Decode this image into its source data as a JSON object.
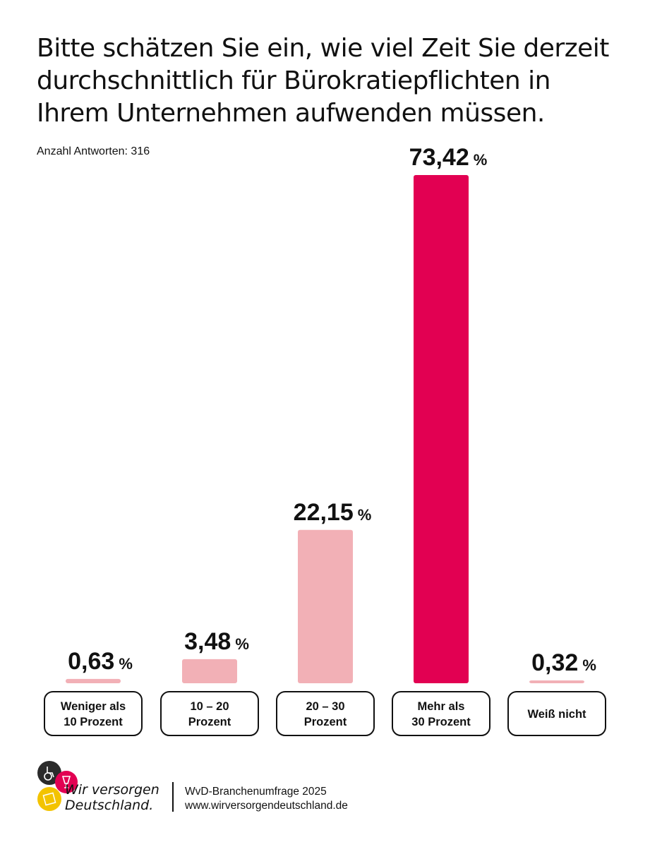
{
  "chart_data": {
    "type": "bar",
    "title": "Bitte schätzen Sie ein, wie viel Zeit Sie derzeit durchschnittlich für Bürokratiepflichten in Ihrem Unternehmen aufwenden müssen.",
    "subtitle": "Anzahl Antworten: 316",
    "categories": [
      [
        "Weniger als",
        "10 Prozent"
      ],
      [
        "10 – 20",
        "Prozent"
      ],
      [
        "20 – 30",
        "Prozent"
      ],
      [
        "Mehr als",
        "30 Prozent"
      ],
      [
        "Weiß nicht"
      ]
    ],
    "values": [
      0.63,
      3.48,
      22.15,
      73.42,
      0.32
    ],
    "value_labels": [
      "0,63",
      "3,48",
      "22,15",
      "73,42",
      "0,32"
    ],
    "unit": "%",
    "bar_colors": [
      "#f2b0b6",
      "#f2b0b6",
      "#f2b0b6",
      "#e20052",
      "#f2b0b6"
    ],
    "grid": false,
    "legend": "none"
  },
  "footer": {
    "logo_line1": "Wir versorgen",
    "logo_line2": "Deutschland.",
    "source_line1": "WvD-Branchenumfrage 2025",
    "source_line2": "www.wirversorgendeutschland.de"
  },
  "colors": {
    "accent": "#e20052",
    "muted_bar": "#f2b0b6",
    "logo_dark": "#2b2b2b",
    "logo_yellow": "#f3c300"
  }
}
